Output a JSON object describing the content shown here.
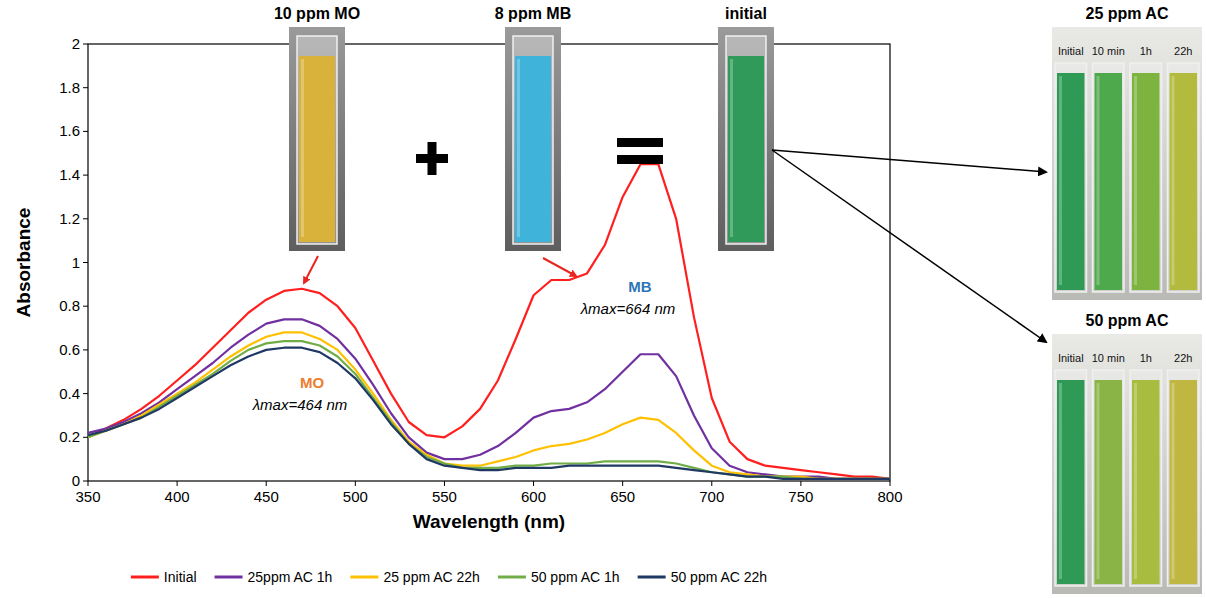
{
  "chart_data": {
    "type": "line",
    "x_label": "Wavelength (nm)",
    "y_label": "Absorbance",
    "xlim": [
      350,
      800
    ],
    "xticks": [
      350,
      400,
      450,
      500,
      550,
      600,
      650,
      700,
      750,
      800
    ],
    "ylim": [
      0,
      2
    ],
    "yticks": [
      0,
      0.2,
      0.4,
      0.6,
      0.8,
      1,
      1.2,
      1.4,
      1.6,
      1.8,
      2
    ],
    "grid": false,
    "legend": "bottom",
    "x": [
      350,
      360,
      370,
      380,
      390,
      400,
      410,
      420,
      430,
      440,
      450,
      460,
      470,
      480,
      490,
      500,
      510,
      520,
      530,
      540,
      550,
      560,
      570,
      580,
      590,
      600,
      610,
      620,
      630,
      640,
      650,
      660,
      670,
      680,
      690,
      700,
      710,
      720,
      730,
      740,
      750,
      760,
      770,
      780,
      790,
      800
    ],
    "series": [
      {
        "name": "Initial",
        "color": "#ff1f1f",
        "values": [
          0.2,
          0.24,
          0.28,
          0.33,
          0.39,
          0.46,
          0.53,
          0.61,
          0.69,
          0.77,
          0.83,
          0.87,
          0.88,
          0.86,
          0.8,
          0.7,
          0.55,
          0.4,
          0.27,
          0.21,
          0.2,
          0.25,
          0.33,
          0.46,
          0.65,
          0.85,
          0.92,
          0.92,
          0.95,
          1.08,
          1.3,
          1.45,
          1.45,
          1.2,
          0.75,
          0.38,
          0.18,
          0.1,
          0.07,
          0.06,
          0.05,
          0.04,
          0.03,
          0.02,
          0.02,
          0.01
        ]
      },
      {
        "name": "25ppm AC 1h",
        "color": "#7030a0",
        "values": [
          0.22,
          0.24,
          0.27,
          0.31,
          0.36,
          0.42,
          0.48,
          0.54,
          0.61,
          0.67,
          0.72,
          0.74,
          0.74,
          0.71,
          0.65,
          0.56,
          0.44,
          0.31,
          0.2,
          0.13,
          0.1,
          0.1,
          0.12,
          0.16,
          0.22,
          0.29,
          0.32,
          0.33,
          0.36,
          0.42,
          0.5,
          0.58,
          0.58,
          0.48,
          0.3,
          0.15,
          0.07,
          0.04,
          0.03,
          0.02,
          0.02,
          0.02,
          0.01,
          0.01,
          0.01,
          0.01
        ]
      },
      {
        "name": "25 ppm AC 22h",
        "color": "#ffc000",
        "values": [
          0.2,
          0.23,
          0.26,
          0.3,
          0.35,
          0.4,
          0.45,
          0.51,
          0.57,
          0.62,
          0.66,
          0.68,
          0.68,
          0.65,
          0.6,
          0.51,
          0.4,
          0.28,
          0.18,
          0.12,
          0.08,
          0.07,
          0.07,
          0.09,
          0.11,
          0.14,
          0.16,
          0.17,
          0.19,
          0.22,
          0.26,
          0.29,
          0.28,
          0.22,
          0.14,
          0.07,
          0.04,
          0.03,
          0.02,
          0.02,
          0.02,
          0.01,
          0.01,
          0.01,
          0.01,
          0.01
        ]
      },
      {
        "name": "50 ppm AC 1h",
        "color": "#70ad47",
        "values": [
          0.2,
          0.23,
          0.26,
          0.29,
          0.34,
          0.39,
          0.44,
          0.49,
          0.55,
          0.6,
          0.63,
          0.64,
          0.64,
          0.62,
          0.57,
          0.49,
          0.38,
          0.27,
          0.17,
          0.11,
          0.08,
          0.06,
          0.06,
          0.06,
          0.07,
          0.07,
          0.08,
          0.08,
          0.08,
          0.09,
          0.09,
          0.09,
          0.09,
          0.08,
          0.06,
          0.04,
          0.03,
          0.02,
          0.02,
          0.02,
          0.01,
          0.01,
          0.01,
          0.01,
          0.01,
          0.01
        ]
      },
      {
        "name": "50 ppm AC 22h",
        "color": "#203864",
        "values": [
          0.21,
          0.23,
          0.26,
          0.29,
          0.33,
          0.38,
          0.43,
          0.48,
          0.53,
          0.57,
          0.6,
          0.61,
          0.61,
          0.59,
          0.54,
          0.47,
          0.37,
          0.26,
          0.17,
          0.1,
          0.07,
          0.06,
          0.05,
          0.05,
          0.06,
          0.06,
          0.06,
          0.07,
          0.07,
          0.07,
          0.07,
          0.07,
          0.07,
          0.06,
          0.05,
          0.04,
          0.03,
          0.02,
          0.02,
          0.01,
          0.01,
          0.01,
          0.01,
          0.01,
          0.01,
          0.01
        ]
      }
    ],
    "annotations": [
      {
        "text": "MB",
        "color": "#2e75b6"
      },
      {
        "text": "λmax=664 nm",
        "color": "#000000"
      },
      {
        "text": "MO",
        "color": "#ed7d31"
      },
      {
        "text": "λmax=464 nm",
        "color": "#000000"
      }
    ]
  },
  "mixing": [
    {
      "label": "10 ppm MO",
      "color": "#d9b23c"
    },
    {
      "label": "8 ppm MB",
      "color": "#3fb3da"
    },
    {
      "label": "initial",
      "color": "#2f9a5a"
    }
  ],
  "adsorption": [
    {
      "title": "25 ppm AC",
      "samples": [
        {
          "label": "Initial",
          "color": "#2f9a55"
        },
        {
          "label": "10 min",
          "color": "#4ea84c"
        },
        {
          "label": "1h",
          "color": "#7db43f"
        },
        {
          "label": "22h",
          "color": "#b3bb3e"
        }
      ]
    },
    {
      "title": "50 ppm AC",
      "samples": [
        {
          "label": "Initial",
          "color": "#2f9a55"
        },
        {
          "label": "10 min",
          "color": "#8ab446"
        },
        {
          "label": "1h",
          "color": "#a8bc3f"
        },
        {
          "label": "22h",
          "color": "#c0b742"
        }
      ]
    }
  ]
}
